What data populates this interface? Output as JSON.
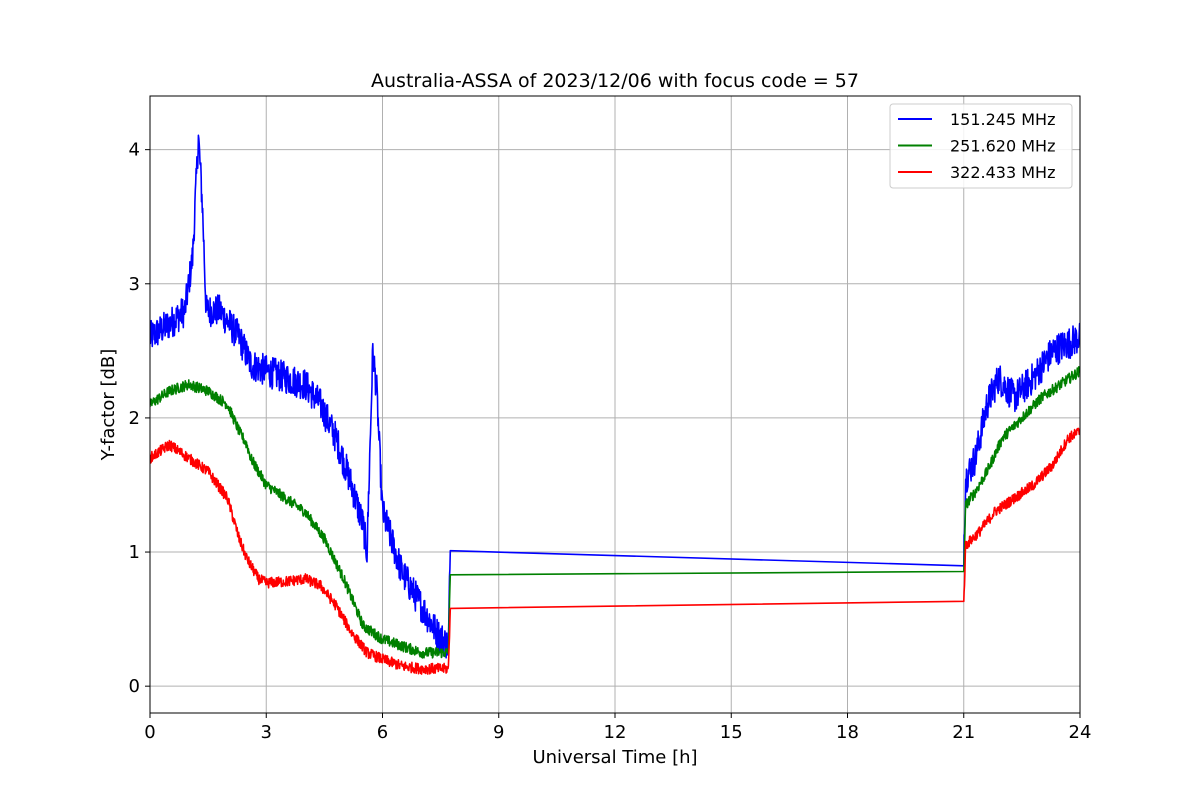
{
  "chart_data": {
    "type": "line",
    "title": "Australia-ASSA of 2023/12/06 with focus code = 57",
    "xlabel": "Universal Time [h]",
    "ylabel": "Y-factor [dB]",
    "xlim": [
      0,
      24
    ],
    "ylim": [
      -0.2,
      4.4
    ],
    "xticks": [
      0,
      3,
      6,
      9,
      12,
      15,
      18,
      21,
      24
    ],
    "yticks": [
      0,
      1,
      2,
      3,
      4
    ],
    "grid": true,
    "legend_position": "top-right",
    "series": [
      {
        "name": "151.245 MHz",
        "color": "#0000ff",
        "noise": 0.12,
        "points": [
          [
            0,
            2.6
          ],
          [
            0.5,
            2.7
          ],
          [
            0.9,
            2.8
          ],
          [
            1.1,
            3.2
          ],
          [
            1.25,
            4.1
          ],
          [
            1.35,
            3.6
          ],
          [
            1.45,
            2.8
          ],
          [
            1.8,
            2.8
          ],
          [
            2.3,
            2.6
          ],
          [
            2.6,
            2.4
          ],
          [
            3.0,
            2.35
          ],
          [
            3.5,
            2.3
          ],
          [
            4.0,
            2.25
          ],
          [
            4.4,
            2.1
          ],
          [
            4.8,
            1.85
          ],
          [
            5.2,
            1.5
          ],
          [
            5.5,
            1.2
          ],
          [
            5.6,
            1.0
          ],
          [
            5.75,
            2.5
          ],
          [
            5.85,
            2.2
          ],
          [
            6.0,
            1.3
          ],
          [
            6.5,
            0.85
          ],
          [
            7.0,
            0.6
          ],
          [
            7.4,
            0.4
          ],
          [
            7.7,
            0.3
          ],
          [
            7.75,
            1.01
          ],
          [
            21.0,
            1.01
          ],
          [
            21.05,
            1.55
          ],
          [
            21.3,
            1.7
          ],
          [
            21.6,
            2.1
          ],
          [
            21.9,
            2.3
          ],
          [
            22.3,
            2.15
          ],
          [
            22.8,
            2.3
          ],
          [
            23.3,
            2.5
          ],
          [
            24,
            2.6
          ]
        ]
      },
      {
        "name": "251.620 MHz",
        "color": "#008000",
        "noise": 0.04,
        "points": [
          [
            0,
            2.1
          ],
          [
            0.5,
            2.2
          ],
          [
            1.0,
            2.25
          ],
          [
            1.5,
            2.2
          ],
          [
            2.0,
            2.1
          ],
          [
            2.3,
            1.9
          ],
          [
            2.5,
            1.8
          ],
          [
            2.6,
            1.7
          ],
          [
            3.0,
            1.5
          ],
          [
            3.5,
            1.4
          ],
          [
            4.0,
            1.3
          ],
          [
            4.5,
            1.1
          ],
          [
            5.0,
            0.8
          ],
          [
            5.5,
            0.45
          ],
          [
            6.0,
            0.35
          ],
          [
            6.5,
            0.3
          ],
          [
            7.0,
            0.25
          ],
          [
            7.7,
            0.25
          ],
          [
            7.75,
            0.83
          ],
          [
            21.0,
            0.86
          ],
          [
            21.05,
            1.35
          ],
          [
            21.3,
            1.45
          ],
          [
            21.6,
            1.6
          ],
          [
            22.0,
            1.85
          ],
          [
            22.5,
            2.0
          ],
          [
            23.0,
            2.15
          ],
          [
            23.5,
            2.25
          ],
          [
            24,
            2.35
          ]
        ]
      },
      {
        "name": "322.433 MHz",
        "color": "#ff0000",
        "noise": 0.04,
        "points": [
          [
            0,
            1.7
          ],
          [
            0.5,
            1.8
          ],
          [
            1.0,
            1.7
          ],
          [
            1.5,
            1.6
          ],
          [
            2.0,
            1.4
          ],
          [
            2.3,
            1.1
          ],
          [
            2.5,
            0.95
          ],
          [
            2.8,
            0.8
          ],
          [
            3.0,
            0.77
          ],
          [
            3.5,
            0.78
          ],
          [
            4.0,
            0.8
          ],
          [
            4.4,
            0.75
          ],
          [
            4.8,
            0.6
          ],
          [
            5.2,
            0.4
          ],
          [
            5.6,
            0.25
          ],
          [
            6.0,
            0.2
          ],
          [
            6.5,
            0.15
          ],
          [
            7.0,
            0.13
          ],
          [
            7.7,
            0.13
          ],
          [
            7.75,
            0.58
          ],
          [
            21.0,
            0.61
          ],
          [
            21.05,
            1.05
          ],
          [
            21.4,
            1.15
          ],
          [
            21.8,
            1.3
          ],
          [
            22.3,
            1.4
          ],
          [
            22.8,
            1.5
          ],
          [
            23.3,
            1.65
          ],
          [
            23.7,
            1.85
          ],
          [
            24,
            1.9
          ]
        ]
      }
    ]
  }
}
